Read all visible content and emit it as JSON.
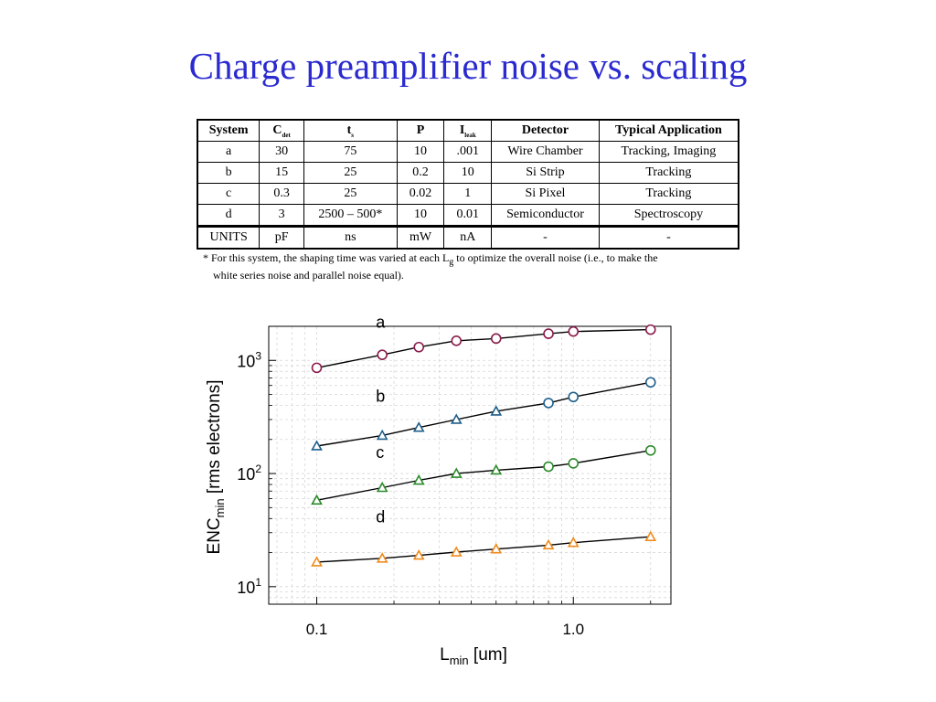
{
  "slide": {
    "title": "Charge preamplifier noise vs. scaling"
  },
  "table": {
    "headers": [
      {
        "main": "System",
        "sub": ""
      },
      {
        "main": "C",
        "sub": "det"
      },
      {
        "main": "t",
        "sub": "s"
      },
      {
        "main": "P",
        "sub": ""
      },
      {
        "main": "I",
        "sub": "leak"
      },
      {
        "main": "Detector",
        "sub": ""
      },
      {
        "main": "Typical Application",
        "sub": ""
      }
    ],
    "rows": [
      [
        "a",
        "30",
        "75",
        "10",
        ".001",
        "Wire Chamber",
        "Tracking, Imaging"
      ],
      [
        "b",
        "15",
        "25",
        "0.2",
        "10",
        "Si Strip",
        "Tracking"
      ],
      [
        "c",
        "0.3",
        "25",
        "0.02",
        "1",
        "Si Pixel",
        "Tracking"
      ],
      [
        "d",
        "3",
        "2500 – 500*",
        "10",
        "0.01",
        "Semiconductor",
        "Spectroscopy"
      ]
    ],
    "units": [
      "UNITS",
      "pF",
      "ns",
      "mW",
      "nA",
      "-",
      "-"
    ],
    "footnote_line1": "* For this system, the shaping time was varied at each L",
    "footnote_sub": "g",
    "footnote_line1_end": " to optimize the overall noise (i.e., to make the",
    "footnote_line2": "white series noise and parallel noise equal)."
  },
  "chart_data": {
    "type": "line",
    "x_scale": "log",
    "y_scale": "log",
    "xlim": [
      0.065,
      2.4
    ],
    "ylim": [
      7,
      2000
    ],
    "x_ticks": [
      {
        "value": 0.1,
        "label": "0.1"
      },
      {
        "value": 1.0,
        "label": "1.0"
      }
    ],
    "y_ticks": [
      {
        "value": 10,
        "base": "10",
        "exp": "1"
      },
      {
        "value": 100,
        "base": "10",
        "exp": "2"
      },
      {
        "value": 1000,
        "base": "10",
        "exp": "3"
      }
    ],
    "xlabel": {
      "base": "L",
      "sub": "min",
      "rest": " [um]"
    },
    "ylabel": {
      "base": "ENC",
      "sub": "min",
      "rest": " [rms electrons]"
    },
    "grid": true,
    "series": [
      {
        "name": "a",
        "color": "#8b1a4a",
        "points": [
          {
            "x": 0.1,
            "y": 860,
            "marker": "circle"
          },
          {
            "x": 0.18,
            "y": 1120,
            "marker": "circle"
          },
          {
            "x": 0.25,
            "y": 1310,
            "marker": "circle"
          },
          {
            "x": 0.35,
            "y": 1490,
            "marker": "circle"
          },
          {
            "x": 0.5,
            "y": 1560,
            "marker": "circle"
          },
          {
            "x": 0.8,
            "y": 1720,
            "marker": "circle"
          },
          {
            "x": 1.0,
            "y": 1800,
            "marker": "circle"
          },
          {
            "x": 2.0,
            "y": 1870,
            "marker": "circle"
          }
        ]
      },
      {
        "name": "b",
        "color": "#1f5f8b",
        "points": [
          {
            "x": 0.1,
            "y": 175,
            "marker": "triangle"
          },
          {
            "x": 0.18,
            "y": 217,
            "marker": "triangle"
          },
          {
            "x": 0.25,
            "y": 255,
            "marker": "triangle"
          },
          {
            "x": 0.35,
            "y": 300,
            "marker": "triangle"
          },
          {
            "x": 0.5,
            "y": 355,
            "marker": "triangle"
          },
          {
            "x": 0.8,
            "y": 420,
            "marker": "circle"
          },
          {
            "x": 1.0,
            "y": 475,
            "marker": "circle"
          },
          {
            "x": 2.0,
            "y": 640,
            "marker": "circle"
          }
        ]
      },
      {
        "name": "c",
        "color": "#2a8a2a",
        "points": [
          {
            "x": 0.1,
            "y": 58,
            "marker": "triangle"
          },
          {
            "x": 0.18,
            "y": 75,
            "marker": "triangle"
          },
          {
            "x": 0.25,
            "y": 87,
            "marker": "triangle"
          },
          {
            "x": 0.35,
            "y": 100,
            "marker": "triangle"
          },
          {
            "x": 0.5,
            "y": 107,
            "marker": "triangle"
          },
          {
            "x": 0.8,
            "y": 115,
            "marker": "circle"
          },
          {
            "x": 1.0,
            "y": 123,
            "marker": "circle"
          },
          {
            "x": 2.0,
            "y": 160,
            "marker": "circle"
          }
        ]
      },
      {
        "name": "d",
        "color": "#f08a1c",
        "points": [
          {
            "x": 0.1,
            "y": 16.5,
            "marker": "triangle"
          },
          {
            "x": 0.18,
            "y": 17.8,
            "marker": "triangle"
          },
          {
            "x": 0.25,
            "y": 18.9,
            "marker": "triangle"
          },
          {
            "x": 0.35,
            "y": 20.2,
            "marker": "triangle"
          },
          {
            "x": 0.5,
            "y": 21.5,
            "marker": "triangle"
          },
          {
            "x": 0.8,
            "y": 23.3,
            "marker": "triangle"
          },
          {
            "x": 1.0,
            "y": 24.5,
            "marker": "triangle"
          },
          {
            "x": 2.0,
            "y": 27.6,
            "marker": "triangle"
          }
        ]
      }
    ],
    "annotations": [
      {
        "text": "a",
        "x": 0.17,
        "y": 1950
      },
      {
        "text": "b",
        "x": 0.17,
        "y": 430
      },
      {
        "text": "c",
        "x": 0.17,
        "y": 137
      },
      {
        "text": "d",
        "x": 0.17,
        "y": 37
      }
    ]
  }
}
